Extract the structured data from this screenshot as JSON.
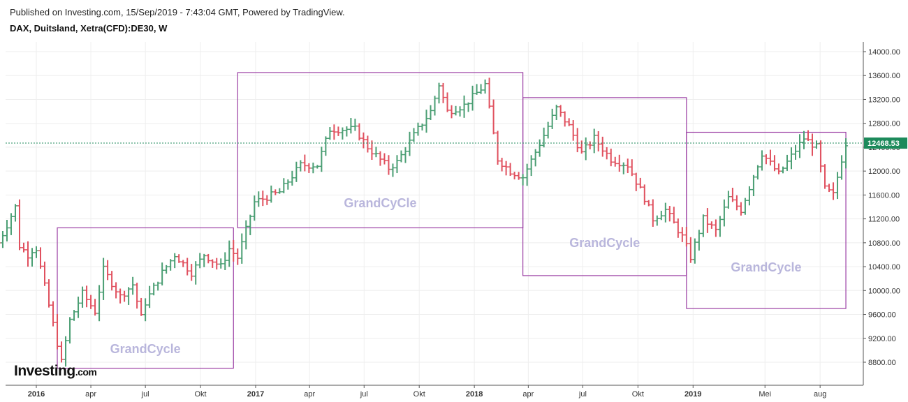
{
  "header": {
    "published": "Published on Investing.com, 15/Sep/2019 - 7:43:04 GMT, Powered by TradingView.",
    "instrument": "DAX, Duitsland, Xetra(CFD):DE30, W"
  },
  "logo": {
    "text": "Investing",
    "suffix": ".com"
  },
  "colors": {
    "up": "#4a9e73",
    "down": "#e0505e",
    "box": "#9b3fa4",
    "last": "#1c8a5b",
    "label": "#b9b6dc"
  },
  "chart_data": {
    "type": "ohlc",
    "title": "DAX, Duitsland, Xetra(CFD):DE30, W",
    "x_ticks": [
      {
        "label": "2016",
        "date": "2016-01-01",
        "bold": true
      },
      {
        "label": "apr",
        "date": "2016-04-01"
      },
      {
        "label": "jul",
        "date": "2016-07-01"
      },
      {
        "label": "Okt",
        "date": "2016-10-01"
      },
      {
        "label": "2017",
        "date": "2017-01-01",
        "bold": true
      },
      {
        "label": "apr",
        "date": "2017-04-01"
      },
      {
        "label": "jul",
        "date": "2017-07-01"
      },
      {
        "label": "Okt",
        "date": "2017-10-01"
      },
      {
        "label": "2018",
        "date": "2018-01-01",
        "bold": true
      },
      {
        "label": "apr",
        "date": "2018-04-01"
      },
      {
        "label": "jul",
        "date": "2018-07-01"
      },
      {
        "label": "Okt",
        "date": "2018-10-01"
      },
      {
        "label": "2019",
        "date": "2019-01-01",
        "bold": true
      },
      {
        "label": "Mei",
        "date": "2019-05-01"
      },
      {
        "label": "aug",
        "date": "2019-08-01"
      }
    ],
    "y_ticks": [
      "14000.00",
      "13600.00",
      "13200.00",
      "12800.00",
      "12400.00",
      "12000.00",
      "11600.00",
      "11200.00",
      "10800.00",
      "10400.00",
      "10000.00",
      "9600.00",
      "9200.00",
      "8800.00"
    ],
    "ylim": [
      8400,
      14200
    ],
    "last_price": {
      "value": 12468.53,
      "label": "12468.53"
    },
    "key_prices": [
      [
        "2015-10-30",
        10800
      ],
      [
        "2015-11-20",
        11250
      ],
      [
        "2015-11-27",
        11400
      ],
      [
        "2015-12-04",
        10750
      ],
      [
        "2015-12-18",
        10600
      ],
      [
        "2015-12-31",
        10750
      ],
      [
        "2016-01-22",
        9750
      ],
      [
        "2016-02-12",
        8800
      ],
      [
        "2016-02-26",
        9500
      ],
      [
        "2016-03-18",
        9950
      ],
      [
        "2016-04-08",
        9650
      ],
      [
        "2016-04-22",
        10350
      ],
      [
        "2016-05-20",
        9900
      ],
      [
        "2016-06-10",
        10100
      ],
      [
        "2016-06-24",
        9550
      ],
      [
        "2016-07-01",
        9800
      ],
      [
        "2016-07-29",
        10300
      ],
      [
        "2016-08-19",
        10600
      ],
      [
        "2016-09-16",
        10300
      ],
      [
        "2016-10-07",
        10600
      ],
      [
        "2016-11-04",
        10400
      ],
      [
        "2016-11-18",
        10700
      ],
      [
        "2016-12-02",
        10550
      ],
      [
        "2016-12-30",
        11480
      ],
      [
        "2017-02-10",
        11650
      ],
      [
        "2017-03-17",
        12100
      ],
      [
        "2017-04-14",
        12100
      ],
      [
        "2017-05-05",
        12700
      ],
      [
        "2017-06-16",
        12700
      ],
      [
        "2017-07-07",
        12400
      ],
      [
        "2017-08-11",
        12050
      ],
      [
        "2017-08-25",
        12150
      ],
      [
        "2017-09-22",
        12600
      ],
      [
        "2017-10-20",
        13000
      ],
      [
        "2017-11-03",
        13450
      ],
      [
        "2017-11-17",
        13000
      ],
      [
        "2017-12-15",
        13100
      ],
      [
        "2018-01-19",
        13450
      ],
      [
        "2018-02-09",
        12200
      ],
      [
        "2018-03-02",
        12000
      ],
      [
        "2018-03-23",
        11900
      ],
      [
        "2018-04-27",
        12600
      ],
      [
        "2018-05-18",
        13050
      ],
      [
        "2018-06-08",
        12750
      ],
      [
        "2018-06-29",
        12300
      ],
      [
        "2018-07-20",
        12550
      ],
      [
        "2018-08-17",
        12200
      ],
      [
        "2018-09-14",
        12100
      ],
      [
        "2018-10-12",
        11550
      ],
      [
        "2018-10-26",
        11200
      ],
      [
        "2018-11-16",
        11350
      ],
      [
        "2018-12-14",
        10900
      ],
      [
        "2018-12-28",
        10560
      ],
      [
        "2019-01-18",
        11200
      ],
      [
        "2019-02-08",
        11000
      ],
      [
        "2019-03-01",
        11550
      ],
      [
        "2019-03-22",
        11350
      ],
      [
        "2019-04-26",
        12300
      ],
      [
        "2019-05-24",
        11950
      ],
      [
        "2019-06-21",
        12350
      ],
      [
        "2019-07-05",
        12550
      ],
      [
        "2019-07-26",
        12400
      ],
      [
        "2019-08-09",
        11700
      ],
      [
        "2019-08-23",
        11600
      ],
      [
        "2019-09-06",
        12200
      ],
      [
        "2019-09-13",
        12468
      ]
    ],
    "cycle_boxes": [
      {
        "label": "GrandCycle",
        "start": "2016-02-05",
        "end": "2016-11-25",
        "low": 8700,
        "high": 11050
      },
      {
        "label": "GrandCyCle",
        "start": "2016-12-02",
        "end": "2018-03-23",
        "low": 11050,
        "high": 13650
      },
      {
        "label": "GrandCycle",
        "start": "2018-03-23",
        "end": "2018-12-21",
        "low": 10250,
        "high": 13230
      },
      {
        "label": "GrandCycle",
        "start": "2018-12-21",
        "end": "2019-09-13",
        "low": 9700,
        "high": 12650
      }
    ]
  }
}
